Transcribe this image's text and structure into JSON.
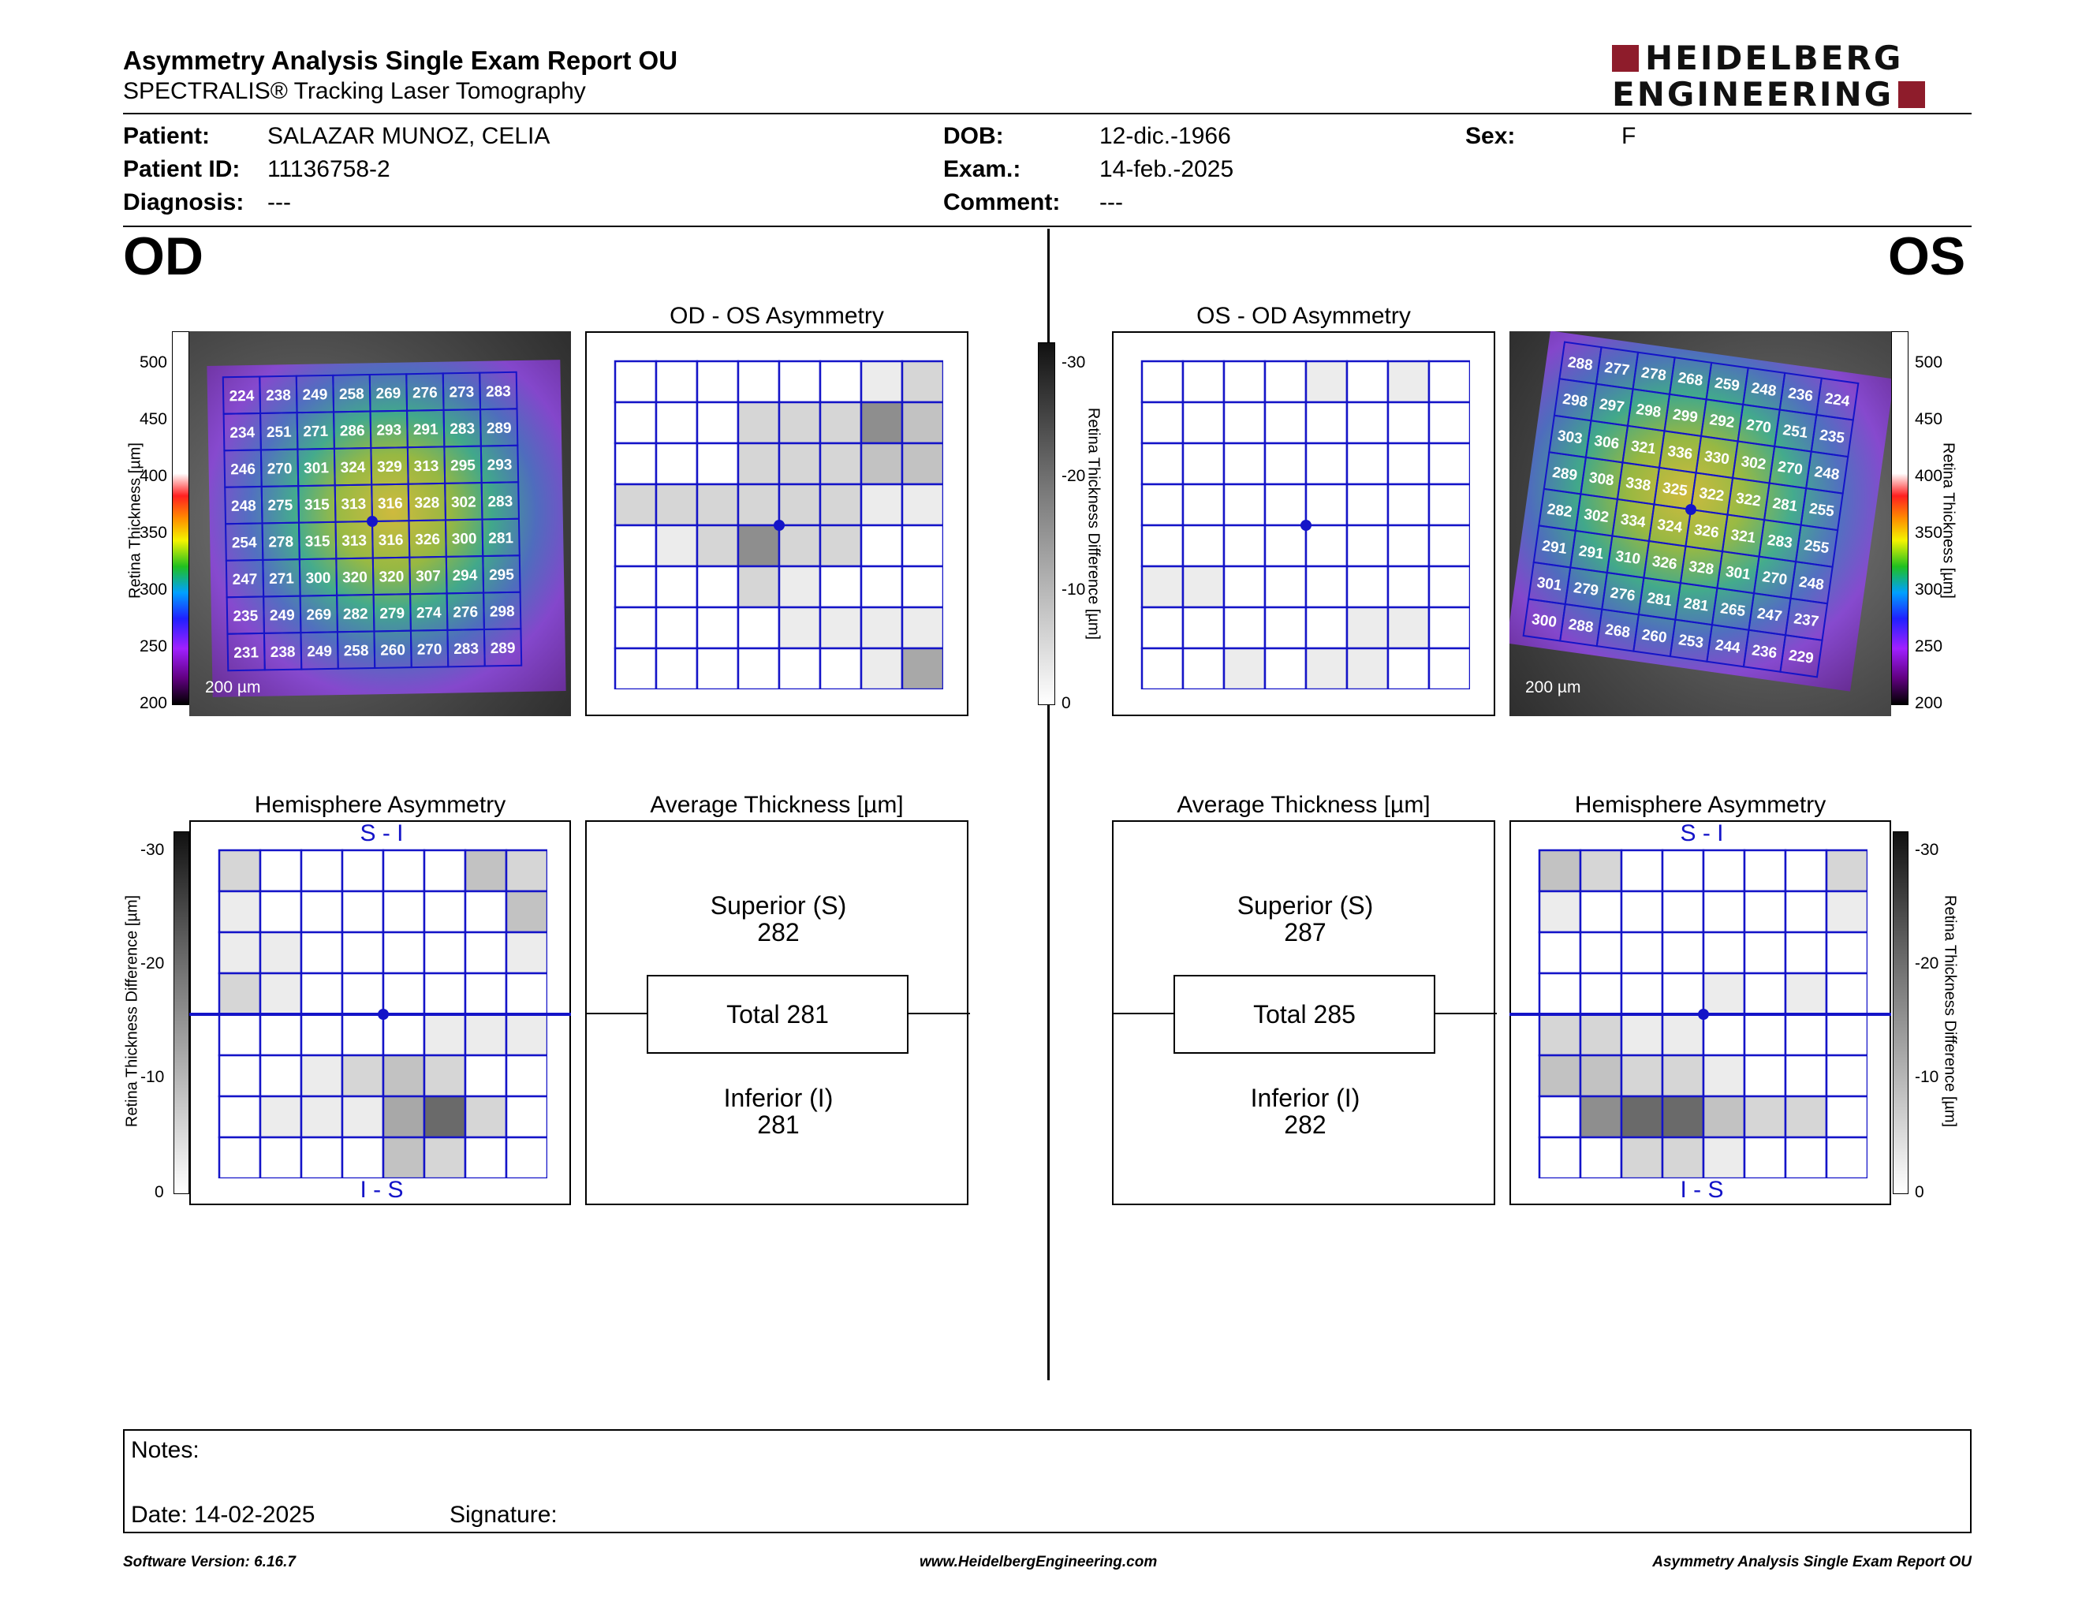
{
  "report": {
    "title": "Asymmetry Analysis Single Exam Report OU",
    "subtitle": "SPECTRALIS® Tracking Laser Tomography",
    "logo_line1": "HEIDELBERG",
    "logo_line2": "ENGINEERING"
  },
  "patient": {
    "name_label": "Patient:",
    "name": "SALAZAR MUNOZ, CELIA",
    "id_label": "Patient ID:",
    "id": "11136758-2",
    "diagnosis_label": "Diagnosis:",
    "diagnosis": "---",
    "dob_label": "DOB:",
    "dob": "12-dic.-1966",
    "exam_label": "Exam.:",
    "exam": "14-feb.-2025",
    "comment_label": "Comment:",
    "comment": "---",
    "sex_label": "Sex:",
    "sex": "F"
  },
  "od": {
    "eye_label": "OD",
    "asym_title": "OD - OS Asymmetry",
    "hemi_title": "Hemisphere Asymmetry",
    "avg_title": "Average Thickness [µm]",
    "superior_label": "Superior (S)",
    "superior": "282",
    "total_label": "Total 281",
    "inferior_label": "Inferior (I)",
    "inferior": "281",
    "scale_label": "200 µm",
    "hemi_top": "S - I",
    "hemi_bottom": "I - S",
    "thickness": [
      [
        224,
        238,
        249,
        258,
        269,
        276,
        273,
        283
      ],
      [
        234,
        251,
        271,
        286,
        293,
        291,
        283,
        289
      ],
      [
        246,
        270,
        301,
        324,
        329,
        313,
        295,
        293
      ],
      [
        248,
        275,
        315,
        313,
        316,
        328,
        302,
        283
      ],
      [
        254,
        278,
        315,
        313,
        316,
        326,
        300,
        281
      ],
      [
        247,
        271,
        300,
        320,
        320,
        307,
        294,
        295
      ],
      [
        235,
        249,
        269,
        282,
        279,
        274,
        276,
        298
      ],
      [
        231,
        238,
        249,
        258,
        260,
        270,
        283,
        289
      ]
    ],
    "asym_gray": [
      [
        0,
        0,
        0,
        0,
        0,
        0,
        1,
        2
      ],
      [
        0,
        0,
        0,
        2,
        2,
        2,
        5,
        3
      ],
      [
        0,
        0,
        0,
        2,
        2,
        2,
        3,
        3
      ],
      [
        2,
        2,
        2,
        2,
        2,
        2,
        1,
        1
      ],
      [
        0,
        1,
        2,
        5,
        2,
        2,
        0,
        0
      ],
      [
        0,
        0,
        0,
        2,
        1,
        0,
        0,
        0
      ],
      [
        0,
        0,
        0,
        0,
        1,
        1,
        1,
        1
      ],
      [
        0,
        0,
        0,
        0,
        0,
        0,
        1,
        4
      ]
    ],
    "hemi_gray": [
      [
        2,
        0,
        0,
        0,
        0,
        0,
        3,
        2
      ],
      [
        1,
        0,
        0,
        0,
        0,
        0,
        0,
        3
      ],
      [
        1,
        1,
        0,
        0,
        0,
        0,
        0,
        1
      ],
      [
        2,
        1,
        0,
        0,
        0,
        0,
        0,
        0
      ],
      [
        0,
        0,
        0,
        0,
        0,
        1,
        1,
        1
      ],
      [
        0,
        0,
        1,
        2,
        3,
        2,
        0,
        0
      ],
      [
        0,
        1,
        1,
        1,
        4,
        6,
        2,
        0
      ],
      [
        0,
        0,
        0,
        0,
        3,
        2,
        0,
        0
      ]
    ]
  },
  "os": {
    "eye_label": "OS",
    "asym_title": "OS - OD Asymmetry",
    "hemi_title": "Hemisphere Asymmetry",
    "avg_title": "Average Thickness [µm]",
    "superior_label": "Superior (S)",
    "superior": "287",
    "total_label": "Total 285",
    "inferior_label": "Inferior (I)",
    "inferior": "282",
    "scale_label": "200 µm",
    "hemi_top": "S - I",
    "hemi_bottom": "I - S",
    "thickness": [
      [
        288,
        277,
        278,
        268,
        259,
        248,
        236,
        224
      ],
      [
        298,
        297,
        298,
        299,
        292,
        270,
        251,
        235
      ],
      [
        303,
        306,
        321,
        336,
        330,
        302,
        270,
        248
      ],
      [
        289,
        308,
        338,
        325,
        322,
        322,
        281,
        255
      ],
      [
        282,
        302,
        334,
        324,
        326,
        321,
        283,
        255
      ],
      [
        291,
        291,
        310,
        326,
        328,
        301,
        270,
        248
      ],
      [
        301,
        279,
        276,
        281,
        281,
        265,
        247,
        237
      ],
      [
        300,
        288,
        268,
        260,
        253,
        244,
        236,
        229
      ]
    ],
    "asym_gray": [
      [
        0,
        0,
        0,
        0,
        1,
        0,
        1,
        0
      ],
      [
        0,
        0,
        0,
        0,
        0,
        0,
        0,
        0
      ],
      [
        0,
        0,
        0,
        0,
        0,
        0,
        0,
        0
      ],
      [
        0,
        0,
        0,
        0,
        0,
        0,
        0,
        0
      ],
      [
        0,
        0,
        0,
        0,
        0,
        0,
        0,
        0
      ],
      [
        1,
        1,
        0,
        0,
        0,
        0,
        0,
        0
      ],
      [
        0,
        0,
        0,
        0,
        0,
        1,
        1,
        0
      ],
      [
        0,
        0,
        1,
        0,
        1,
        1,
        0,
        0
      ]
    ],
    "hemi_gray": [
      [
        3,
        2,
        0,
        0,
        0,
        0,
        0,
        2
      ],
      [
        1,
        0,
        0,
        0,
        0,
        0,
        0,
        1
      ],
      [
        0,
        0,
        0,
        0,
        0,
        0,
        0,
        0
      ],
      [
        0,
        0,
        0,
        0,
        1,
        0,
        1,
        0
      ],
      [
        2,
        2,
        1,
        1,
        0,
        0,
        0,
        0
      ],
      [
        3,
        3,
        2,
        2,
        1,
        0,
        0,
        0
      ],
      [
        0,
        5,
        6,
        6,
        3,
        2,
        2,
        0
      ],
      [
        0,
        0,
        2,
        2,
        1,
        0,
        0,
        0
      ]
    ]
  },
  "axes": {
    "thickness_label": "Retina Thickness [µm]",
    "thickness_ticks": [
      "500",
      "450",
      "400",
      "350",
      "300",
      "250",
      "200"
    ],
    "diff_label": "Retina Thickness Difference [µm]",
    "diff_ticks": [
      "-30",
      "-20",
      "-10",
      "0"
    ]
  },
  "notes": {
    "notes_label": "Notes:",
    "date_label": "Date: 14-02-2025",
    "signature_label": "Signature:"
  },
  "footer": {
    "software": "Software Version: 6.16.7",
    "website": "www.HeidelbergEngineering.com",
    "report_name": "Asymmetry Analysis Single Exam Report OU"
  },
  "colors": {
    "grid_blue": "#1414c8",
    "logo_red": "#8e1c2b"
  },
  "gray_levels": [
    "#ffffff",
    "#ececec",
    "#d6d6d6",
    "#c2c2c2",
    "#a8a8a8",
    "#8e8e8e",
    "#6a6a6a"
  ]
}
